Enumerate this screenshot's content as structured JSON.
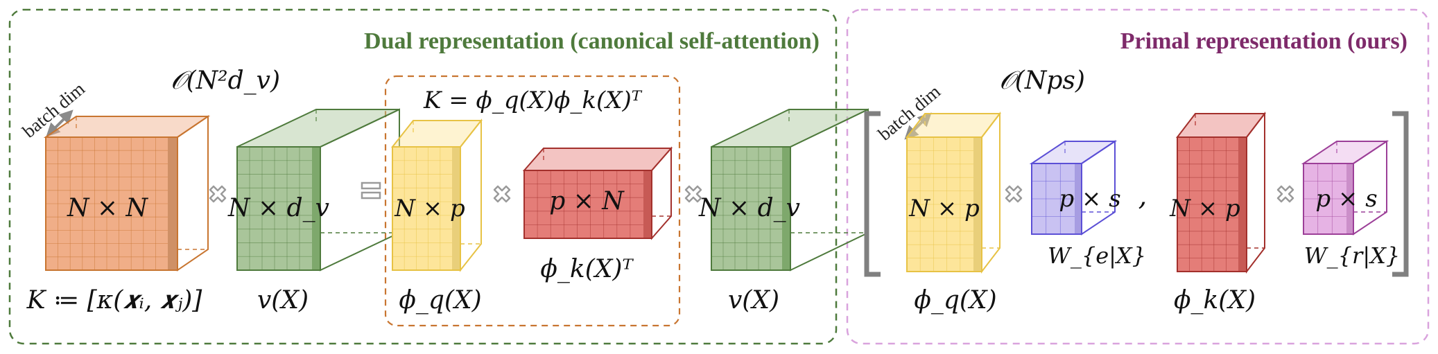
{
  "panels": {
    "dual": {
      "title": "Dual representation (canonical self-attention)",
      "color": "#4e7a3c",
      "complexity": "𝒪(N²d_v)",
      "batch_label": "batch dim",
      "kernel_box_formula": "K = ϕ_q(X)ϕ_k(X)ᵀ",
      "equals": "=",
      "blocks": [
        {
          "text": "N × N",
          "caption": "K ≔ [κ(𝒙ᵢ, 𝒙ⱼ)]",
          "front": "#f0ae88",
          "side": "#cf9066",
          "edge": "#c87530"
        },
        {
          "text": "N × d_v",
          "caption": "v(X)",
          "front": "#a9c59a",
          "side": "#7ea86c",
          "edge": "#4e7a3c"
        },
        {
          "text": "N × p",
          "caption": "ϕ_q(X)",
          "front": "#fde59a",
          "side": "#e9cf7a",
          "edge": "#e7c244"
        },
        {
          "text": "p × N",
          "caption": "ϕ_k(X)ᵀ",
          "front": "#e47d78",
          "side": "#c75a55",
          "edge": "#a3302c"
        },
        {
          "text": "N × d_v",
          "caption": "v(X)",
          "front": "#a9c59a",
          "side": "#7ea86c",
          "edge": "#4e7a3c"
        }
      ]
    },
    "primal": {
      "title": "Primal representation (ours)",
      "color": "#7e2a6a",
      "complexity": "𝒪(Nps)",
      "batch_label": "batch dim",
      "separator": ",",
      "blocks": [
        {
          "text": "N × p",
          "caption": "ϕ_q(X)",
          "front": "#fde59a",
          "side": "#e9cf7a",
          "edge": "#e7c244"
        },
        {
          "text": "p × s",
          "caption": "W_{e|X}",
          "front": "#c9c2f2",
          "side": "#a79de2",
          "edge": "#5b4fd6"
        },
        {
          "text": "N × p",
          "caption": "ϕ_k(X)",
          "front": "#e47d78",
          "side": "#c75a55",
          "edge": "#a3302c"
        },
        {
          "text": "p × s",
          "caption": "W_{r|X}",
          "front": "#e6b3e4",
          "side": "#cb8fc9",
          "edge": "#9c3f98"
        }
      ]
    }
  },
  "colors": {
    "dual_border": "#4e7a3c",
    "kernel_box_border": "#c87530",
    "primal_border": "#d9a3dd",
    "operator": "#9a9a9a",
    "bracket": "#808080"
  },
  "icons": {
    "times": "times-cross-icon",
    "batch_arrow": "double-arrow-icon"
  }
}
